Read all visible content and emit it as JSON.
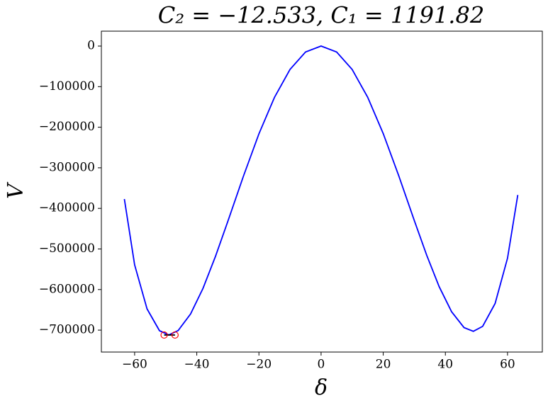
{
  "chart_data": {
    "type": "line",
    "title": "C₂ = −12.533,  C₁ = 1191.82",
    "x_label": "δ",
    "y_label": "V",
    "x": [
      -63.3,
      -60,
      -56,
      -52,
      -49,
      -46,
      -42,
      -38,
      -34,
      -30,
      -25,
      -20,
      -15,
      -10,
      -5,
      0,
      5,
      10,
      15,
      20,
      25,
      30,
      34,
      38,
      42,
      46,
      49,
      52,
      56,
      60,
      63.3
    ],
    "series": [
      {
        "name": "V",
        "color": "#0000ff",
        "values": [
          -377000,
          -539100,
          -647700,
          -701400,
          -711800,
          -701100,
          -660300,
          -597100,
          -518600,
          -431900,
          -320900,
          -216300,
          -126500,
          -57700,
          -14700,
          0,
          -14600,
          -57700,
          -126200,
          -215700,
          -319700,
          -429900,
          -515600,
          -592900,
          -654700,
          -693700,
          -702900,
          -690700,
          -634400,
          -522700,
          -367000
        ]
      }
    ],
    "points": {
      "color": "#ff0000",
      "x": [
        -50.5,
        -47
      ],
      "y": [
        -712000,
        -712000
      ]
    },
    "xlim": [
      -70.7,
      71.2
    ],
    "ylim": [
      -754000,
      36700
    ],
    "xticks": [
      {
        "value": -60,
        "label": "−60"
      },
      {
        "value": -40,
        "label": "−40"
      },
      {
        "value": -20,
        "label": "−20"
      },
      0,
      20,
      40,
      60
    ],
    "yticks": [
      0,
      {
        "value": -100000,
        "label": "−100000"
      },
      {
        "value": -200000,
        "label": "−200000"
      },
      {
        "value": -300000,
        "label": "−300000"
      },
      {
        "value": -400000,
        "label": "−400000"
      },
      {
        "value": -500000,
        "label": "−500000"
      },
      {
        "value": -600000,
        "label": "−600000"
      },
      {
        "value": -700000,
        "label": "−700000"
      }
    ],
    "grid": false
  }
}
